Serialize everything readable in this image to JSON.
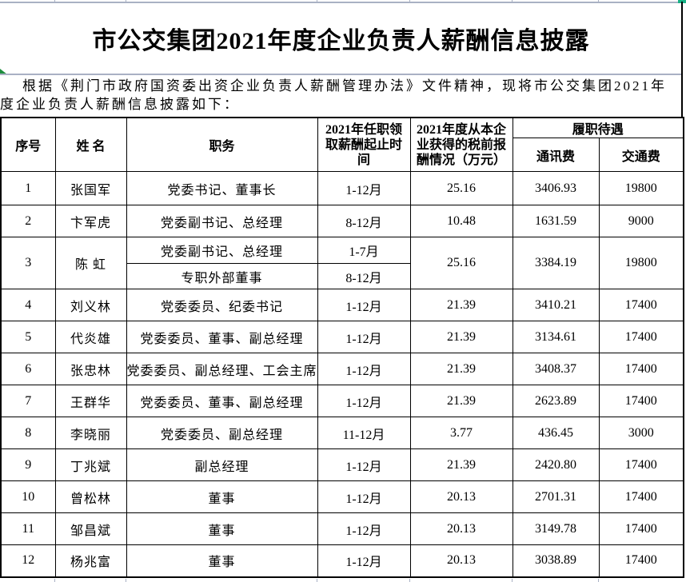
{
  "document": {
    "title": "市公交集团2021年度企业负责人薪酬信息披露",
    "intro_line1": "根据《荆门市政府国资委出资企业负责人薪酬管理办法》文件精神，现将市公交集团2021年",
    "intro_line2": "度企业负责人薪酬信息披露如下："
  },
  "table": {
    "headers": {
      "serial": "序号",
      "name": "姓 名",
      "position": "职务",
      "period": "2021年任职领\n取薪酬起止时\n间",
      "pretax": "2021年度从本企\n业获得的税前报\n酬情况（万元）",
      "benefits_group": "履职待遇",
      "communication_fee": "通讯费",
      "transport_fee": "交通费"
    },
    "rows": [
      {
        "no": "1",
        "name": "张国军",
        "positions": [
          {
            "title": "党委书记、董事长",
            "period": "1-12月"
          }
        ],
        "pretax": "25.16",
        "comm": "3406.93",
        "transport": "19800"
      },
      {
        "no": "2",
        "name": "卞军虎",
        "positions": [
          {
            "title": "党委副书记、总经理",
            "period": "8-12月"
          }
        ],
        "pretax": "10.48",
        "comm": "1631.59",
        "transport": "9000"
      },
      {
        "no": "3",
        "name": "陈 虹",
        "positions": [
          {
            "title": "党委副书记、总经理",
            "period": "1-7月"
          },
          {
            "title": "专职外部董事",
            "period": "8-12月"
          }
        ],
        "pretax": "25.16",
        "comm": "3384.19",
        "transport": "19800"
      },
      {
        "no": "4",
        "name": "刘义林",
        "positions": [
          {
            "title": "党委委员、纪委书记",
            "period": "1-12月"
          }
        ],
        "pretax": "21.39",
        "comm": "3410.21",
        "transport": "17400"
      },
      {
        "no": "5",
        "name": "代炎雄",
        "positions": [
          {
            "title": "党委委员、董事、副总经理",
            "period": "1-12月"
          }
        ],
        "pretax": "21.39",
        "comm": "3134.61",
        "transport": "17400"
      },
      {
        "no": "6",
        "name": "张忠林",
        "positions": [
          {
            "title": "党委委员、副总经理、工会主席",
            "period": "1-12月"
          }
        ],
        "pretax": "21.39",
        "comm": "3408.37",
        "transport": "17400"
      },
      {
        "no": "7",
        "name": "王群华",
        "positions": [
          {
            "title": "党委委员、董事、副总经理",
            "period": "1-12月"
          }
        ],
        "pretax": "21.39",
        "comm": "2623.89",
        "transport": "17400"
      },
      {
        "no": "8",
        "name": "李晓丽",
        "positions": [
          {
            "title": "党委委员、副总经理",
            "period": "11-12月"
          }
        ],
        "pretax": "3.77",
        "comm": "436.45",
        "transport": "3000"
      },
      {
        "no": "9",
        "name": "丁兆斌",
        "positions": [
          {
            "title": "副总经理",
            "period": "1-12月"
          }
        ],
        "pretax": "21.39",
        "comm": "2420.80",
        "transport": "17400"
      },
      {
        "no": "10",
        "name": "曾松林",
        "positions": [
          {
            "title": "董事",
            "period": "1-12月"
          }
        ],
        "pretax": "20.13",
        "comm": "2701.31",
        "transport": "17400"
      },
      {
        "no": "11",
        "name": "邹昌斌",
        "positions": [
          {
            "title": "董事",
            "period": "1-12月"
          }
        ],
        "pretax": "20.13",
        "comm": "3149.78",
        "transport": "17400"
      },
      {
        "no": "12",
        "name": "杨兆富",
        "positions": [
          {
            "title": "董事",
            "period": "1-12月"
          }
        ],
        "pretax": "20.13",
        "comm": "3038.89",
        "transport": "17400"
      }
    ]
  },
  "icons": {
    "error_indicator": "green-corner-triangle",
    "fill_handle": "teal-selection-handle"
  },
  "colors": {
    "table_border": "#000000",
    "gridline": "#a9b1c4",
    "error_indicator_green": "#1e8e3e",
    "selection_handle_teal": "#18b287",
    "text": "#000000",
    "background": "#ffffff"
  }
}
